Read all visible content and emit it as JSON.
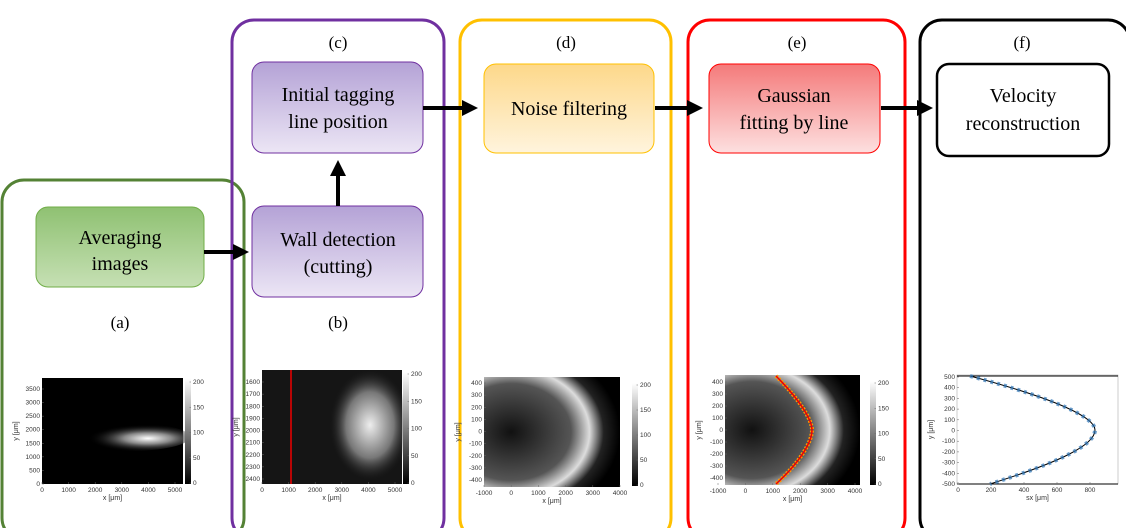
{
  "stages": [
    {
      "tag": "(a)",
      "lines": [
        "Averaging",
        "images"
      ]
    },
    {
      "tag": "(b)",
      "lines": [
        "Wall detection",
        "(cutting)"
      ]
    },
    {
      "tag": "(c)",
      "lines": [
        "Initial tagging",
        "line position"
      ]
    },
    {
      "tag": "(d)",
      "lines": [
        "Noise filtering"
      ]
    },
    {
      "tag": "(e)",
      "lines": [
        "Gaussian",
        "fitting by line"
      ]
    },
    {
      "tag": "(f)",
      "lines": [
        "Velocity",
        "reconstruction"
      ]
    }
  ],
  "plots": [
    {
      "x_label": "x [μm]",
      "y_label": "y [μm]",
      "xticks": [
        0,
        1000,
        2000,
        3000,
        4000,
        5000
      ],
      "yticks": [
        3500,
        3000,
        2500,
        2000,
        1500,
        1000,
        500,
        0
      ],
      "colorbar_ticks": [
        200,
        150,
        100,
        50,
        0
      ]
    },
    {
      "x_label": "x [μm]",
      "y_label": "y [μm]",
      "xticks": [
        0,
        1000,
        2000,
        3000,
        4000,
        5000
      ],
      "yticks": [
        1600,
        1700,
        1800,
        1900,
        2000,
        2100,
        2200,
        2300,
        2400
      ],
      "colorbar_ticks": [
        200,
        150,
        100,
        50,
        0
      ]
    },
    {
      "x_label": "x [μm]",
      "y_label": "y [μm]",
      "xticks": [
        -1000,
        0,
        1000,
        2000,
        3000,
        4000
      ],
      "yticks": [
        400,
        300,
        200,
        100,
        0,
        -100,
        -200,
        -300,
        -400
      ],
      "colorbar_ticks": [
        200,
        150,
        100,
        50,
        0
      ]
    },
    {
      "x_label": "x [μm]",
      "y_label": "y [μm]",
      "xticks": [
        -1000,
        0,
        1000,
        2000,
        3000,
        4000
      ],
      "yticks": [
        400,
        300,
        200,
        100,
        0,
        -100,
        -200,
        -300,
        -400
      ],
      "colorbar_ticks": [
        200,
        150,
        100,
        50,
        0
      ]
    },
    {
      "x_label": "sx [μm]",
      "y_label": "y [μm]",
      "xticks": [
        0,
        200,
        400,
        600,
        800
      ],
      "yticks": [
        500,
        400,
        300,
        200,
        100,
        0,
        -100,
        -200,
        -300,
        -400,
        -500
      ]
    }
  ]
}
